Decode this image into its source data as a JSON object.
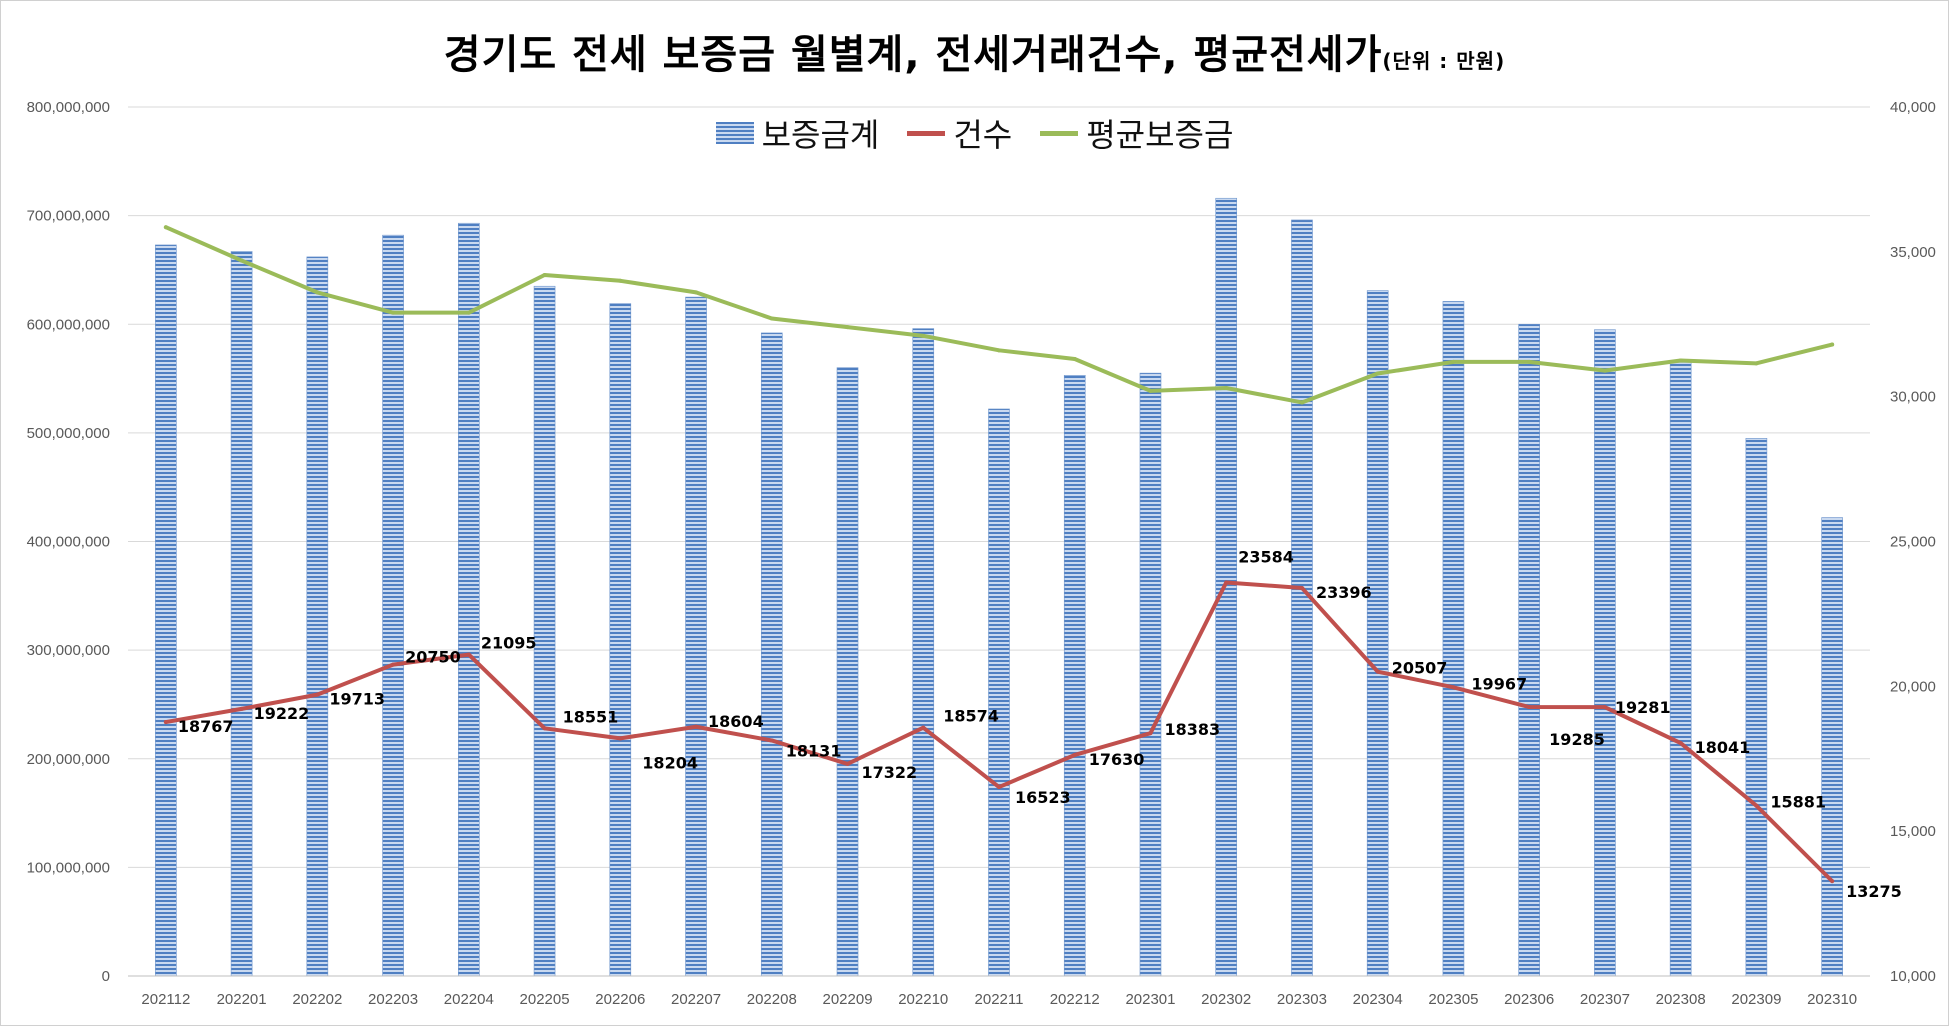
{
  "title": "경기도 전세 보증금 월별계, 전세거래건수, 평균전세가",
  "title_unit": "(단위 : 만원)",
  "colors": {
    "bar": "#4f7fc2",
    "bar_light": "#c9d9f0",
    "count_line": "#c0504d",
    "avg_line": "#9bbb59",
    "grid": "#d9d9d9"
  },
  "chart_data": {
    "type": "bar",
    "title": "경기도 전세 보증금 월별계, 전세거래건수, 평균전세가",
    "categories": [
      "202112",
      "202201",
      "202202",
      "202203",
      "202204",
      "202205",
      "202206",
      "202207",
      "202208",
      "202209",
      "202210",
      "202211",
      "202212",
      "202301",
      "202302",
      "202303",
      "202304",
      "202305",
      "202306",
      "202307",
      "202308",
      "202309",
      "202310"
    ],
    "series": [
      {
        "name": "보증금계",
        "type": "bar",
        "axis": "left",
        "values": [
          673000000,
          667000000,
          662000000,
          682000000,
          693000000,
          635000000,
          619000000,
          625000000,
          592000000,
          560000000,
          596000000,
          522000000,
          553000000,
          555000000,
          716000000,
          696000000,
          631000000,
          621000000,
          600000000,
          595000000,
          565000000,
          495000000,
          422000000
        ]
      },
      {
        "name": "건수",
        "type": "line",
        "axis": "right",
        "values": [
          18767,
          19222,
          19713,
          20750,
          21095,
          18551,
          18204,
          18604,
          18131,
          17322,
          18574,
          16523,
          17630,
          18383,
          23584,
          23396,
          20507,
          19967,
          19285,
          19281,
          18041,
          15881,
          13275
        ]
      },
      {
        "name": "평균보증금",
        "type": "line",
        "axis": "right",
        "values": [
          35850,
          34700,
          33600,
          32900,
          32900,
          34200,
          34000,
          33600,
          32700,
          32400,
          32100,
          31600,
          31300,
          30200,
          30300,
          29800,
          30800,
          31200,
          31200,
          30900,
          31250,
          31150,
          31800
        ]
      }
    ],
    "left_axis": {
      "min": 0,
      "max": 800000000,
      "step": 100000000,
      "tick_labels": [
        "0",
        "100,000,000",
        "200,000,000",
        "300,000,000",
        "400,000,000",
        "500,000,000",
        "600,000,000",
        "700,000,000",
        "800,000,000"
      ]
    },
    "right_axis": {
      "min": 10000,
      "max": 40000,
      "step": 5000,
      "tick_labels": [
        "10,000",
        "15,000",
        "20,000",
        "25,000",
        "30,000",
        "35,000",
        "40,000"
      ]
    },
    "data_labels": [
      "18767",
      "19222",
      "19713",
      "20750",
      "21095",
      "18551",
      "18204",
      "18604",
      "18131",
      "17322",
      "18574",
      "16523",
      "17630",
      "18383",
      "23584",
      "23396",
      "20507",
      "19967",
      "19285",
      "19281",
      "18041",
      "15881",
      "13275"
    ],
    "legend": [
      "보증금계",
      "건수",
      "평균보증금"
    ],
    "legend_position": "top-center",
    "grid": true
  }
}
